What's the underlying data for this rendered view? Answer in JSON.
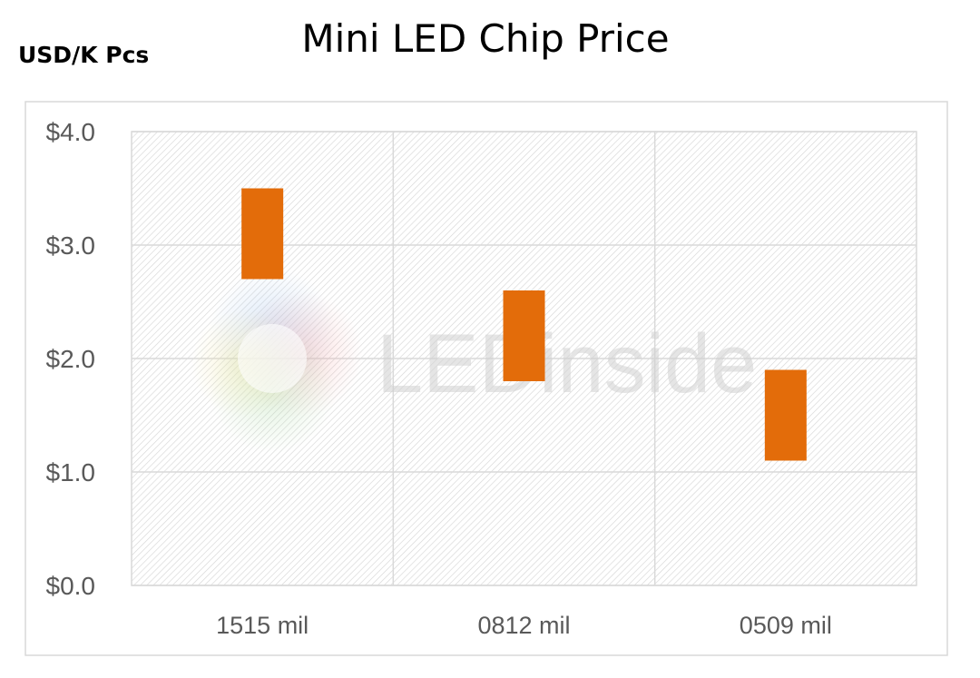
{
  "chart_data": {
    "type": "bar",
    "title": "Mini LED Chip Price",
    "ylabel": "USD/K Pcs",
    "categories": [
      "1515 mil",
      "0812 mil",
      "0509 mil"
    ],
    "series": [
      {
        "low": [
          2.7,
          1.8,
          1.1
        ],
        "high": [
          3.5,
          2.6,
          1.9
        ]
      }
    ],
    "ylim": [
      0,
      4
    ],
    "yticks": [
      0,
      1,
      2,
      3,
      4
    ],
    "ytick_labels": [
      "$0.0",
      "$1.0",
      "$2.0",
      "$3.0",
      "$4.0"
    ],
    "grid": true,
    "legend": "none",
    "colors": {
      "bar": "#E36C0A",
      "grid": "#d9d9d9",
      "plot_hatch": "#d0d0d0",
      "axis_text": "#595959"
    },
    "watermark": "LEDinside"
  }
}
